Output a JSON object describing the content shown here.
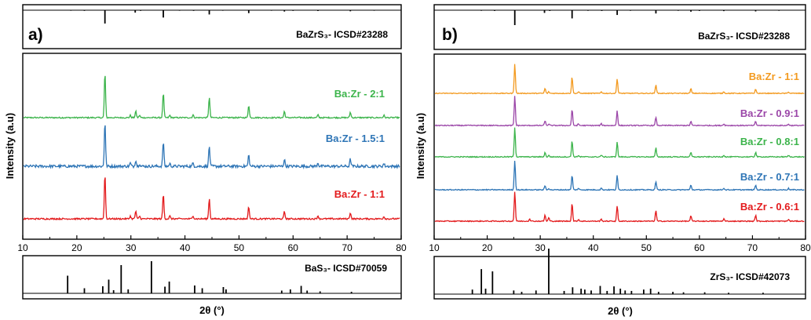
{
  "chart_data": [
    {
      "panel_label": "a)",
      "type": "line",
      "xlabel": "2θ (°)",
      "ylabel": "Intensity (a.u)",
      "xlim": [
        10,
        80
      ],
      "x_ticks": [
        10,
        20,
        30,
        40,
        50,
        60,
        70,
        80
      ],
      "reference_top": {
        "label": "BaZrS₃- ICSD#23288",
        "peaks": [
          [
            18.9,
            0.04
          ],
          [
            21.4,
            0.05
          ],
          [
            25.2,
            1.0
          ],
          [
            30.8,
            0.18
          ],
          [
            31.8,
            0.05
          ],
          [
            36.0,
            0.55
          ],
          [
            39.0,
            0.04
          ],
          [
            41.6,
            0.05
          ],
          [
            44.5,
            0.32
          ],
          [
            47.0,
            0.04
          ],
          [
            51.8,
            0.22
          ],
          [
            56.0,
            0.04
          ],
          [
            58.4,
            0.1
          ],
          [
            60.0,
            0.05
          ],
          [
            64.6,
            0.06
          ],
          [
            70.6,
            0.08
          ],
          [
            75.0,
            0.04
          ]
        ]
      },
      "reference_bottom": {
        "label": "BaS₃- ICSD#70059",
        "peaks": [
          [
            18.3,
            0.45
          ],
          [
            21.4,
            0.13
          ],
          [
            24.8,
            0.18
          ],
          [
            25.9,
            0.35
          ],
          [
            26.8,
            0.08
          ],
          [
            28.2,
            0.72
          ],
          [
            29.5,
            0.1
          ],
          [
            33.8,
            0.82
          ],
          [
            36.3,
            0.17
          ],
          [
            37.1,
            0.3
          ],
          [
            41.8,
            0.2
          ],
          [
            43.2,
            0.13
          ],
          [
            47.1,
            0.16
          ],
          [
            47.6,
            0.1
          ],
          [
            57.9,
            0.07
          ],
          [
            59.5,
            0.1
          ],
          [
            61.5,
            0.19
          ],
          [
            62.6,
            0.07
          ],
          [
            65.0,
            0.05
          ],
          [
            70.8,
            0.04
          ]
        ]
      },
      "series": [
        {
          "name": "Ba:Zr - 2:1",
          "color": "#3cb44b",
          "noise": 0.014,
          "peaks": [
            [
              25.2,
              1.0
            ],
            [
              29.9,
              0.05
            ],
            [
              30.9,
              0.14
            ],
            [
              31.6,
              0.05
            ],
            [
              36.0,
              0.55
            ],
            [
              37.2,
              0.05
            ],
            [
              41.5,
              0.06
            ],
            [
              44.5,
              0.45
            ],
            [
              51.8,
              0.28
            ],
            [
              58.4,
              0.14
            ],
            [
              64.6,
              0.06
            ],
            [
              70.6,
              0.12
            ],
            [
              76.8,
              0.05
            ]
          ]
        },
        {
          "name": "Ba:Zr - 1.5:1",
          "color": "#2e75b6",
          "noise": 0.03,
          "peaks": [
            [
              25.2,
              1.0
            ],
            [
              29.9,
              0.07
            ],
            [
              30.9,
              0.14
            ],
            [
              31.6,
              0.06
            ],
            [
              36.0,
              0.55
            ],
            [
              37.2,
              0.06
            ],
            [
              41.5,
              0.07
            ],
            [
              44.5,
              0.45
            ],
            [
              51.8,
              0.25
            ],
            [
              58.4,
              0.15
            ],
            [
              64.6,
              0.08
            ],
            [
              70.6,
              0.16
            ],
            [
              76.8,
              0.06
            ]
          ]
        },
        {
          "name": "Ba:Zr - 1:1",
          "color": "#e31a1c",
          "noise": 0.016,
          "peaks": [
            [
              25.2,
              1.0
            ],
            [
              29.9,
              0.06
            ],
            [
              30.9,
              0.17
            ],
            [
              31.6,
              0.06
            ],
            [
              36.0,
              0.55
            ],
            [
              37.2,
              0.06
            ],
            [
              41.5,
              0.07
            ],
            [
              44.5,
              0.45
            ],
            [
              51.8,
              0.27
            ],
            [
              58.4,
              0.16
            ],
            [
              64.6,
              0.07
            ],
            [
              70.6,
              0.14
            ],
            [
              76.8,
              0.05
            ]
          ]
        }
      ]
    },
    {
      "panel_label": "b)",
      "type": "line",
      "xlabel": "2θ (°)",
      "ylabel": "Intensity (a.u)",
      "xlim": [
        10,
        80
      ],
      "x_ticks": [
        10,
        20,
        30,
        40,
        50,
        60,
        70,
        80
      ],
      "reference_top": {
        "label": "BaZrS₃- ICSD#23288",
        "peaks": [
          [
            18.9,
            0.04
          ],
          [
            21.4,
            0.05
          ],
          [
            25.2,
            1.0
          ],
          [
            30.8,
            0.18
          ],
          [
            31.8,
            0.05
          ],
          [
            36.0,
            0.55
          ],
          [
            39.0,
            0.04
          ],
          [
            41.6,
            0.05
          ],
          [
            44.5,
            0.32
          ],
          [
            47.0,
            0.04
          ],
          [
            51.8,
            0.22
          ],
          [
            56.0,
            0.04
          ],
          [
            58.4,
            0.1
          ],
          [
            60.0,
            0.05
          ],
          [
            64.6,
            0.06
          ],
          [
            70.6,
            0.08
          ],
          [
            75.0,
            0.04
          ]
        ]
      },
      "reference_bottom": {
        "label": "ZrS₃- ICSD#42073",
        "peaks": [
          [
            17.2,
            0.1
          ],
          [
            18.9,
            0.55
          ],
          [
            19.7,
            0.12
          ],
          [
            21.0,
            0.5
          ],
          [
            25.0,
            0.08
          ],
          [
            26.5,
            0.05
          ],
          [
            29.2,
            0.08
          ],
          [
            31.6,
            1.0
          ],
          [
            34.5,
            0.07
          ],
          [
            36.1,
            0.15
          ],
          [
            37.7,
            0.12
          ],
          [
            38.4,
            0.1
          ],
          [
            39.6,
            0.08
          ],
          [
            41.3,
            0.18
          ],
          [
            42.6,
            0.07
          ],
          [
            43.9,
            0.17
          ],
          [
            45.1,
            0.12
          ],
          [
            46.0,
            0.08
          ],
          [
            47.2,
            0.07
          ],
          [
            49.5,
            0.1
          ],
          [
            50.8,
            0.12
          ],
          [
            52.3,
            0.05
          ],
          [
            55.0,
            0.05
          ],
          [
            57.0,
            0.04
          ],
          [
            61.0,
            0.04
          ],
          [
            65.5,
            0.03
          ],
          [
            72.0,
            0.03
          ]
        ]
      },
      "series": [
        {
          "name": "Ba:Zr - 1:1",
          "color": "#f39a1f",
          "noise": 0.014,
          "peaks": [
            [
              25.2,
              1.0
            ],
            [
              30.9,
              0.17
            ],
            [
              31.6,
              0.05
            ],
            [
              36.0,
              0.55
            ],
            [
              37.2,
              0.05
            ],
            [
              41.5,
              0.06
            ],
            [
              44.5,
              0.5
            ],
            [
              51.8,
              0.3
            ],
            [
              58.4,
              0.16
            ],
            [
              64.6,
              0.06
            ],
            [
              70.6,
              0.15
            ],
            [
              76.8,
              0.05
            ]
          ]
        },
        {
          "name": "Ba:Zr - 0.9:1",
          "color": "#9b46a8",
          "noise": 0.016,
          "peaks": [
            [
              25.2,
              1.0
            ],
            [
              30.9,
              0.16
            ],
            [
              31.6,
              0.05
            ],
            [
              36.0,
              0.55
            ],
            [
              37.2,
              0.05
            ],
            [
              41.5,
              0.06
            ],
            [
              44.5,
              0.5
            ],
            [
              51.8,
              0.28
            ],
            [
              58.4,
              0.14
            ],
            [
              64.6,
              0.06
            ],
            [
              70.6,
              0.14
            ],
            [
              76.8,
              0.05
            ]
          ]
        },
        {
          "name": "Ba:Zr - 0.8:1",
          "color": "#3cb44b",
          "noise": 0.016,
          "peaks": [
            [
              25.2,
              1.0
            ],
            [
              30.9,
              0.15
            ],
            [
              31.6,
              0.05
            ],
            [
              36.0,
              0.55
            ],
            [
              37.2,
              0.05
            ],
            [
              41.5,
              0.06
            ],
            [
              44.5,
              0.5
            ],
            [
              51.8,
              0.3
            ],
            [
              58.4,
              0.15
            ],
            [
              64.6,
              0.06
            ],
            [
              70.6,
              0.16
            ],
            [
              76.8,
              0.05
            ]
          ]
        },
        {
          "name": "Ba:Zr - 0.7:1",
          "color": "#2e75b6",
          "noise": 0.016,
          "peaks": [
            [
              25.2,
              1.0
            ],
            [
              30.9,
              0.14
            ],
            [
              31.6,
              0.05
            ],
            [
              36.0,
              0.5
            ],
            [
              37.2,
              0.05
            ],
            [
              41.5,
              0.06
            ],
            [
              44.5,
              0.48
            ],
            [
              51.8,
              0.28
            ],
            [
              58.4,
              0.16
            ],
            [
              64.6,
              0.06
            ],
            [
              70.6,
              0.16
            ],
            [
              76.8,
              0.05
            ]
          ]
        },
        {
          "name": "Ba:Zr - 0.6:1",
          "color": "#e31a1c",
          "noise": 0.016,
          "peaks": [
            [
              25.2,
              1.0
            ],
            [
              28.0,
              0.08
            ],
            [
              30.9,
              0.2
            ],
            [
              31.6,
              0.12
            ],
            [
              36.0,
              0.6
            ],
            [
              37.2,
              0.06
            ],
            [
              41.5,
              0.07
            ],
            [
              44.5,
              0.52
            ],
            [
              51.8,
              0.36
            ],
            [
              58.4,
              0.18
            ],
            [
              64.6,
              0.08
            ],
            [
              70.6,
              0.2
            ],
            [
              76.8,
              0.06
            ]
          ]
        }
      ]
    }
  ]
}
